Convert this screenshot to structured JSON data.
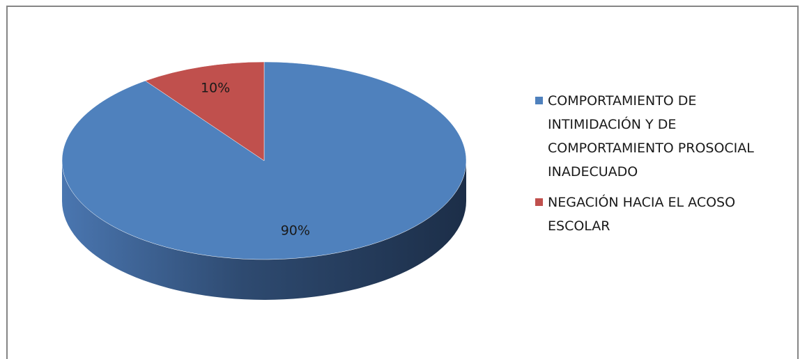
{
  "chart_data": {
    "type": "pie",
    "style": "3d",
    "title": "",
    "series": [
      {
        "name": "",
        "slices": [
          {
            "label": "COMPORTAMIENTO DE INTIMIDACIÓN Y DE COMPORTAMIENTO PROSOCIAL INADECUADO",
            "value": 90,
            "display": "90%",
            "color": "#4f81bd"
          },
          {
            "label": "NEGACIÓN HACIA EL ACOSO ESCOLAR",
            "value": 10,
            "display": "10%",
            "color": "#c0504d"
          }
        ]
      }
    ],
    "legend": {
      "position": "right",
      "lines": [
        [
          "COMPORTAMIENTO DE",
          "INTIMIDACIÓN Y DE",
          "COMPORTAMIENTO PROSOCIAL",
          "INADECUADO"
        ],
        [
          "NEGACIÓN HACIA EL ACOSO",
          "ESCOLAR"
        ]
      ]
    }
  }
}
